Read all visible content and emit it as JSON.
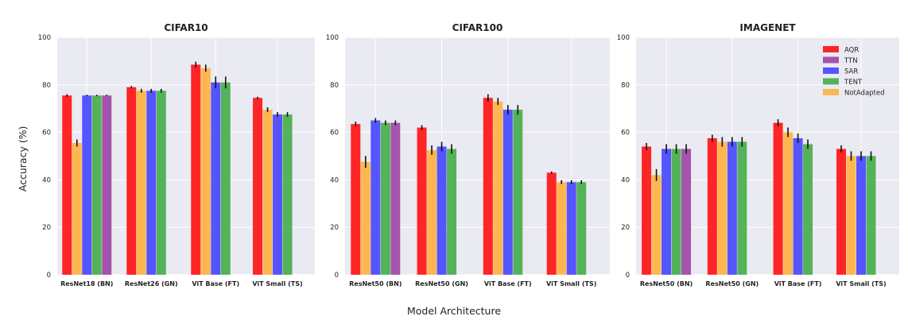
{
  "figure": {
    "ylabel": "Accuracy (%)",
    "xlabel": "Model Architecture"
  },
  "colors": {
    "AQR": "#ff1a1a",
    "NotAdapted": "#ffb347",
    "SAR": "#4d4dff",
    "TENT": "#4caf50",
    "TTN": "#a04ca8",
    "error_bar": "#111111"
  },
  "legend": {
    "position": "top-right of third panel",
    "entries": [
      {
        "key": "AQR",
        "label": "AQR"
      },
      {
        "key": "TTN",
        "label": "TTN"
      },
      {
        "key": "SAR",
        "label": "SAR"
      },
      {
        "key": "TENT",
        "label": "TENT"
      },
      {
        "key": "NotAdapted",
        "label": "NotAdapted"
      }
    ]
  },
  "chart_data": [
    {
      "type": "bar",
      "title": "CIFAR10",
      "ylim": [
        0,
        100
      ],
      "yticks": [
        0,
        20,
        40,
        60,
        80,
        100
      ],
      "categories": [
        "ResNet18 (BN)",
        "ResNet26 (GN)",
        "ViT Base (FT)",
        "ViT Small (TS)"
      ],
      "series": [
        {
          "name": "AQR",
          "values": [
            75.5,
            79.0,
            88.5,
            74.5
          ],
          "errors": [
            0.5,
            0.5,
            1.2,
            0.5
          ]
        },
        {
          "name": "NotAdapted",
          "values": [
            55.5,
            77.5,
            87.0,
            69.5
          ],
          "errors": [
            1.5,
            0.8,
            1.5,
            1.0
          ]
        },
        {
          "name": "SAR",
          "values": [
            75.5,
            77.5,
            81.0,
            67.5
          ],
          "errors": [
            0.3,
            0.8,
            2.5,
            1.0
          ]
        },
        {
          "name": "TENT",
          "values": [
            75.5,
            77.5,
            81.0,
            67.5
          ],
          "errors": [
            0.3,
            0.8,
            2.5,
            1.0
          ]
        },
        {
          "name": "TTN",
          "values": [
            75.5,
            null,
            null,
            null
          ],
          "errors": [
            0.3,
            null,
            null,
            null
          ]
        }
      ]
    },
    {
      "type": "bar",
      "title": "CIFAR100",
      "ylim": [
        0,
        100
      ],
      "yticks": [
        0,
        20,
        40,
        60,
        80,
        100
      ],
      "categories": [
        "ResNet50 (BN)",
        "ResNet50 (GN)",
        "ViT Base (FT)",
        "ViT Small (TS)"
      ],
      "series": [
        {
          "name": "AQR",
          "values": [
            63.5,
            62.0,
            74.5,
            43.0
          ],
          "errors": [
            1.0,
            1.0,
            1.5,
            0.5
          ]
        },
        {
          "name": "NotAdapted",
          "values": [
            47.5,
            52.5,
            73.0,
            39.0
          ],
          "errors": [
            2.5,
            2.0,
            1.5,
            0.8
          ]
        },
        {
          "name": "SAR",
          "values": [
            65.0,
            54.0,
            69.5,
            39.0
          ],
          "errors": [
            1.0,
            2.0,
            2.0,
            0.8
          ]
        },
        {
          "name": "TENT",
          "values": [
            64.0,
            53.0,
            69.5,
            39.0
          ],
          "errors": [
            1.0,
            2.0,
            2.0,
            0.8
          ]
        },
        {
          "name": "TTN",
          "values": [
            64.0,
            null,
            null,
            null
          ],
          "errors": [
            1.0,
            null,
            null,
            null
          ]
        }
      ]
    },
    {
      "type": "bar",
      "title": "IMAGENET",
      "ylim": [
        0,
        100
      ],
      "yticks": [
        0,
        20,
        40,
        60,
        80,
        100
      ],
      "categories": [
        "ResNet50 (BN)",
        "ResNet50 (GN)",
        "ViT Base (FT)",
        "ViT Small (TS)"
      ],
      "series": [
        {
          "name": "AQR",
          "values": [
            54.0,
            57.5,
            64.0,
            53.0
          ],
          "errors": [
            1.5,
            1.5,
            1.5,
            1.5
          ]
        },
        {
          "name": "NotAdapted",
          "values": [
            42.0,
            56.0,
            60.0,
            50.0
          ],
          "errors": [
            2.5,
            2.0,
            2.0,
            2.0
          ]
        },
        {
          "name": "SAR",
          "values": [
            53.0,
            56.0,
            57.5,
            50.0
          ],
          "errors": [
            2.0,
            2.0,
            2.0,
            2.0
          ]
        },
        {
          "name": "TENT",
          "values": [
            53.0,
            56.0,
            55.0,
            50.0
          ],
          "errors": [
            2.0,
            2.0,
            2.0,
            2.0
          ]
        },
        {
          "name": "TTN",
          "values": [
            53.0,
            null,
            null,
            null
          ],
          "errors": [
            2.0,
            null,
            null,
            null
          ]
        }
      ]
    }
  ]
}
